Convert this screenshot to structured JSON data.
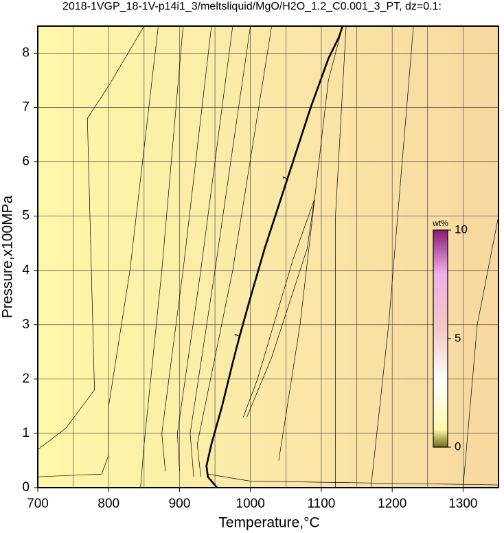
{
  "chart_data": {
    "type": "contour",
    "title": "2018-1VGP_18-1V-p14i1_3/meltsliquid/MgO/H2O_1.2_C0.001_3_PT, dz=0.1:",
    "x_label": "Temperature,°C",
    "y_label": "Pressure,x100MPa",
    "xlim": [
      700,
      1350
    ],
    "ylim": [
      0,
      8.5
    ],
    "xticks": [
      700,
      800,
      900,
      1000,
      1100,
      1200,
      1300
    ],
    "x_minor_ticks": [
      750,
      850,
      950,
      1050,
      1150,
      1250,
      1350
    ],
    "yticks": [
      0,
      1,
      2,
      3,
      4,
      5,
      6,
      7,
      8
    ],
    "grid": true,
    "line_color": "#000000",
    "contours": [
      {
        "x": [
          700,
          740,
          780,
          770,
          800,
          850
        ],
        "y": [
          0.7,
          1.1,
          1.8,
          6.8,
          7.4,
          8.5
        ]
      },
      {
        "x": [
          700,
          790,
          800,
          800,
          830,
          870
        ],
        "y": [
          0.2,
          0.25,
          0.6,
          1.5,
          4,
          8.5
        ]
      },
      {
        "x": [
          845,
          850,
          875,
          905
        ],
        "y": [
          0,
          0.8,
          4,
          8.5
        ]
      },
      {
        "x": [
          880,
          875,
          905,
          945
        ],
        "y": [
          0.3,
          1.0,
          4,
          8.5
        ]
      },
      {
        "x": [
          900,
          897,
          930,
          975
        ],
        "y": [
          0.3,
          1.0,
          4,
          8.5
        ]
      },
      {
        "x": [
          920,
          915,
          950,
          1000
        ],
        "y": [
          0.2,
          1.0,
          4,
          8.5
        ]
      },
      {
        "x": [
          930,
          925,
          975,
          1030
        ],
        "y": [
          0.2,
          0.8,
          4,
          8.5
        ]
      },
      {
        "x": [
          953,
          940,
          938,
          945,
          960,
          975,
          985,
          1000,
          1020,
          1045,
          1065,
          1085,
          1110,
          1125,
          1130
        ],
        "y": [
          0,
          0.2,
          0.4,
          0.8,
          1.5,
          2.3,
          2.8,
          3.5,
          4.4,
          5.4,
          6.2,
          7.0,
          7.9,
          8.3,
          8.5
        ],
        "bold": true,
        "labels": [
          "1",
          "1"
        ],
        "label_x": [
          982,
          1050
        ],
        "label_y": [
          2.8,
          5.7
        ]
      },
      {
        "x": [
          990,
          1010,
          1060,
          1090,
          1080,
          1060,
          1030,
          995
        ],
        "y": [
          1.3,
          2.0,
          4.2,
          5.3,
          4.4,
          3.6,
          2.4,
          1.3
        ]
      },
      {
        "x": [
          1040,
          1070,
          1110,
          1130
        ],
        "y": [
          0.5,
          3,
          7.5,
          8.5
        ]
      },
      {
        "x": [
          1120,
          1120,
          1135
        ],
        "y": [
          0,
          5,
          8.5
        ]
      },
      {
        "x": [
          1170,
          1195,
          1230
        ],
        "y": [
          0,
          3,
          8.5
        ]
      },
      {
        "x": [
          1300,
          1320,
          1350
        ],
        "y": [
          0,
          3,
          5
        ]
      },
      {
        "x": [
          940,
          1000,
          1200,
          1350
        ],
        "y": [
          0.25,
          0.12,
          0.08,
          0.05
        ]
      }
    ],
    "colorbar": {
      "label": "wt%",
      "lim": [
        0,
        10
      ],
      "ticks": [
        0,
        5,
        10
      ]
    }
  }
}
